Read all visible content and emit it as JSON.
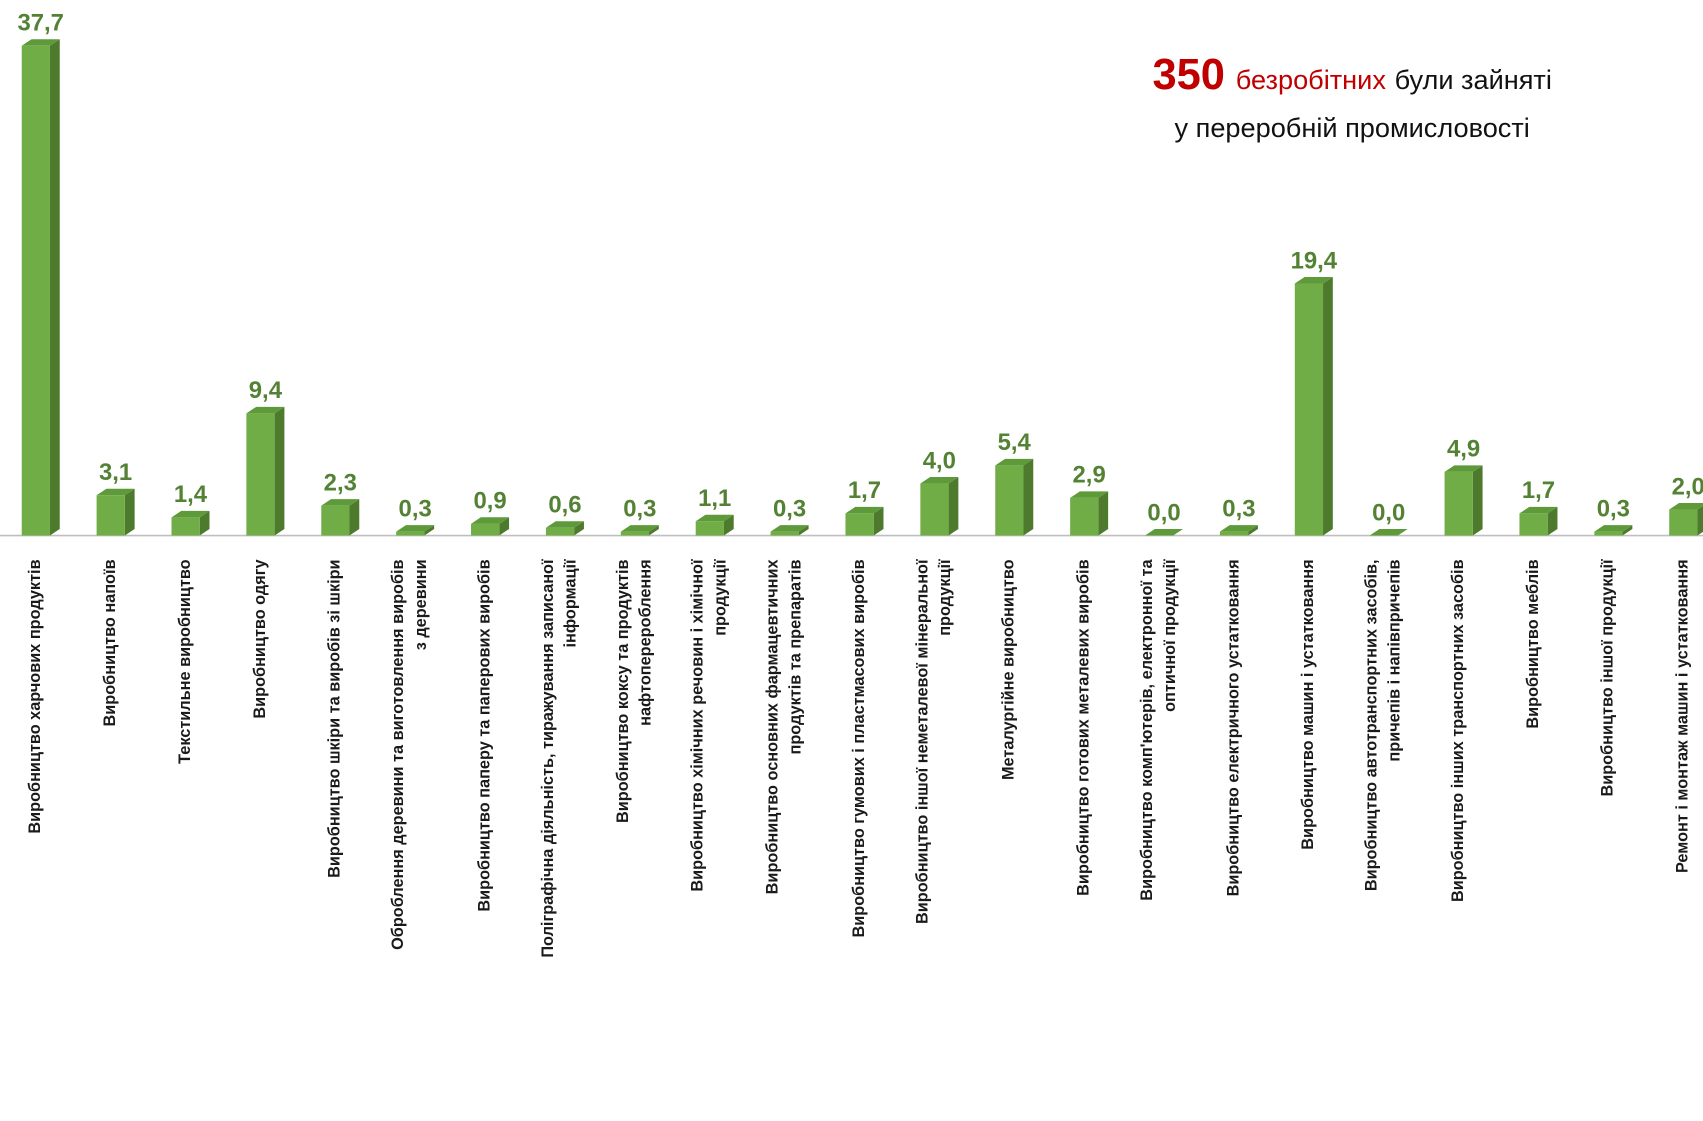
{
  "chart_data": {
    "type": "bar",
    "annotation": {
      "number": 350,
      "highlight": "безробітних",
      "rest": "були зайняті",
      "line2": "у переробній промисловості"
    },
    "categories": [
      [
        "Виробництво харчових продуктів"
      ],
      [
        "Виробництво напоїв"
      ],
      [
        "Текстильне виробництво"
      ],
      [
        "Виробництво одягу"
      ],
      [
        "Виробництво шкіри та виробів зі шкіри"
      ],
      [
        "Оброблення деревини та виготовлення виробів",
        "з деревини"
      ],
      [
        "Виробництво паперу та паперових виробів"
      ],
      [
        "Поліграфічна діяльність, тиражування записаної",
        "інформації"
      ],
      [
        "Виробництво коксу та продуктів",
        "нафтоперероблення"
      ],
      [
        "Виробництво хімічних речовин і хімічної",
        "продукції"
      ],
      [
        "Виробництво основних фармацевтичних",
        "продуктів та препаратів"
      ],
      [
        "Виробництво гумових і пластмасових виробів"
      ],
      [
        "Виробництво іншої неметалевої мінеральної",
        "продукції"
      ],
      [
        "Металургійне виробництво"
      ],
      [
        "Виробництво готових металевих виробів"
      ],
      [
        "Виробництво комп'ютерів, електронної та",
        "оптичної продукції"
      ],
      [
        "Виробництво електричного устатковання"
      ],
      [
        "Виробництво машин і устатковання"
      ],
      [
        "Виробництво автотранспортних засобів,",
        "причепів і напівпричепів"
      ],
      [
        "Виробництво інших транспортних засобів"
      ],
      [
        "Виробництво меблів"
      ],
      [
        "Виробництво іншої продукції"
      ],
      [
        "Ремонт і монтаж машин і устатковання"
      ]
    ],
    "values": [
      37.7,
      3.1,
      1.4,
      9.4,
      2.3,
      0.3,
      0.9,
      0.6,
      0.3,
      1.1,
      0.3,
      1.7,
      4.0,
      5.4,
      2.9,
      0.0,
      0.3,
      19.4,
      0.0,
      4.9,
      1.7,
      0.3,
      2.0
    ],
    "value_labels": [
      "37,7",
      "3,1",
      "1,4",
      "9,4",
      "2,3",
      "0,3",
      "0,9",
      "0,6",
      "0,3",
      "1,1",
      "0,3",
      "1,7",
      "4,0",
      "5,4",
      "2,9",
      "0,0",
      "0,3",
      "19,4",
      "0,0",
      "4,9",
      "1,7",
      "0,3",
      "2,0"
    ],
    "color": "#70ad47",
    "side_color": "#4e7a2e",
    "top_color": "#5f9a3a"
  }
}
